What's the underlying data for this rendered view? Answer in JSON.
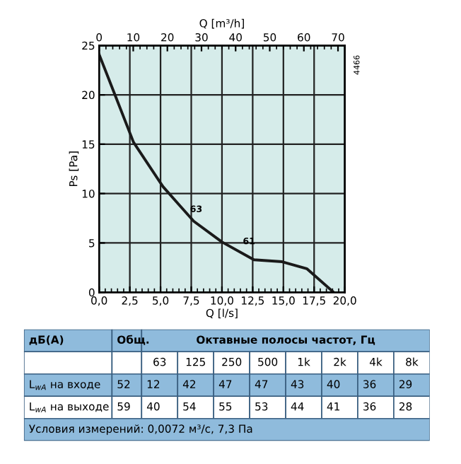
{
  "chart_data": [
    {
      "type": "line",
      "xlabel": "Q [l/s]",
      "ylabel": "Ps [Pa]",
      "x2label": "Q [m³/h]",
      "x": [
        0,
        1.26,
        2.8,
        5.2,
        7.7,
        10,
        12.6,
        14.9,
        16.9,
        19
      ],
      "series": [
        {
          "color": "#1a1a1a",
          "values": [
            24.1,
            20.1,
            15.2,
            10.7,
            7.2,
            5.1,
            3.3,
            3.1,
            2.4,
            0.1
          ]
        }
      ],
      "xlim": [
        0,
        20
      ],
      "xticks": [
        {
          "value": 0,
          "label": "0,0"
        },
        {
          "value": 2.5,
          "label": "2,5"
        },
        {
          "value": 5,
          "label": "5,0"
        },
        {
          "value": 7.5,
          "label": "7,5"
        },
        {
          "value": 10,
          "label": "10,0"
        },
        {
          "value": 12.5,
          "label": "12,5"
        },
        {
          "value": 15,
          "label": "15,0"
        },
        {
          "value": 17.5,
          "label": "17,5"
        },
        {
          "value": 20,
          "label": "20,0"
        }
      ],
      "ylim": [
        0,
        25
      ],
      "yticks": [
        0,
        5,
        10,
        15,
        20,
        25
      ],
      "x2lim": [
        0,
        72
      ],
      "x2ticks": [
        0,
        10,
        20,
        30,
        40,
        50,
        60,
        70
      ],
      "grid": true,
      "line_style": "solid",
      "marker": "none",
      "annotations": [
        "63",
        "61",
        "4466"
      ]
    },
    {
      "type": "other",
      "annotations": [
        "дБ(А)",
        "Общ.",
        "Октавные полосы частот, Гц",
        "63",
        "125",
        "250",
        "500",
        "1k",
        "2k",
        "4k",
        "8k",
        "L$_{wA}$ на входе",
        "52",
        "12",
        "42",
        "47",
        "47",
        "43",
        "40",
        "36",
        "29",
        "L$_{wA}$ на выходе",
        "59",
        "40",
        "54",
        "55",
        "53",
        "44",
        "41",
        "36",
        "28",
        "Условия измерений: 0,0072 м³/с, 7,3 Па"
      ]
    }
  ]
}
